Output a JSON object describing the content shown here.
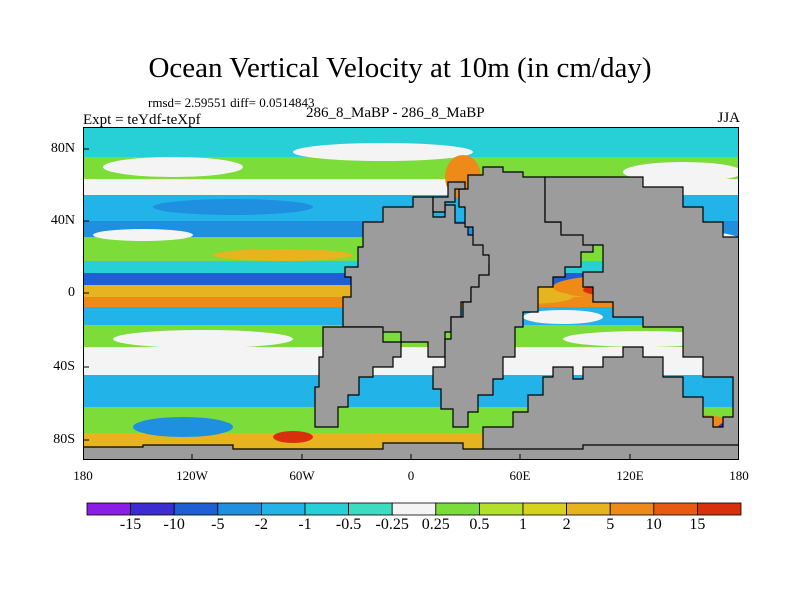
{
  "title": "Ocean Vertical Velocity at 10m (in cm/day)",
  "stats": "rmsd= 2.59551 diff= 0.0514843",
  "expt": "Expt = teYdf-teXpf",
  "center_label": "286_8_MaBP - 286_8_MaBP",
  "season": "JJA",
  "y_ticks": [
    "80N",
    "40N",
    "0",
    "40S",
    "80S"
  ],
  "x_ticks": [
    "180",
    "120W",
    "60W",
    "0",
    "60E",
    "120E",
    "180"
  ],
  "colorbar": {
    "labels": [
      "-15",
      "-10",
      "-5",
      "-2",
      "-1",
      "-0.5",
      "-0.25",
      "0.25",
      "0.5",
      "1",
      "2",
      "5",
      "10",
      "15"
    ],
    "colors": [
      "#8a1ee6",
      "#3c2dd2",
      "#1f5fd6",
      "#1f8fe0",
      "#22b4e8",
      "#27d0d6",
      "#3ddcc0",
      "#f4f4f4",
      "#7bdc3a",
      "#b4e02c",
      "#d7d21e",
      "#e6b41e",
      "#ee8a18",
      "#e85a10",
      "#d8300c"
    ]
  },
  "map_colors": {
    "land": "#9c9c9c",
    "coast": "#000000"
  }
}
